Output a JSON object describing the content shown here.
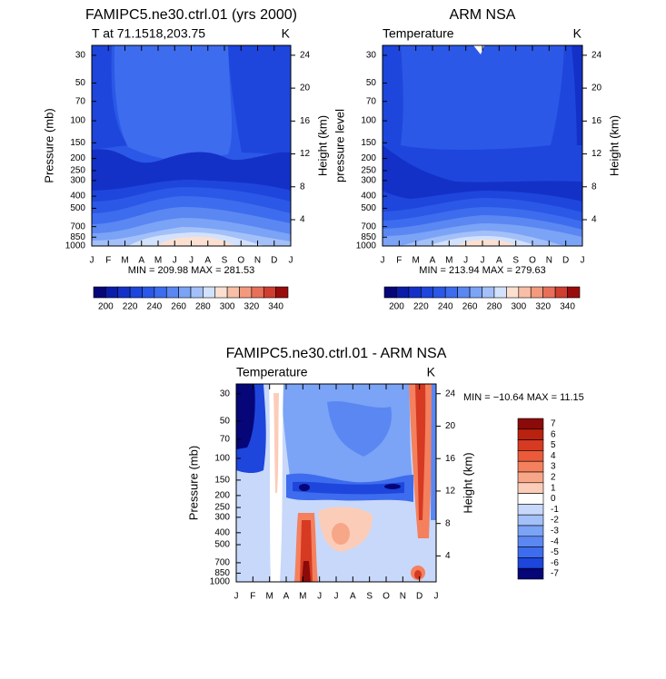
{
  "chart_data": [
    {
      "type": "contour",
      "title": "FAMIPC5.ne30.ctrl.01 (yrs 2000)",
      "left_title": "T at 71.1518,203.75",
      "units": "K",
      "categories": [
        "J",
        "F",
        "M",
        "A",
        "M",
        "J",
        "J",
        "A",
        "S",
        "O",
        "N",
        "D",
        "J"
      ],
      "ylabel": "Pressure (mb)",
      "log_y": true,
      "ylim": [
        1000,
        25
      ],
      "yticks": [
        30,
        50,
        70,
        100,
        150,
        200,
        250,
        300,
        400,
        500,
        700,
        850,
        1000
      ],
      "y2label": "Height (km)",
      "y2lim": [
        0.8,
        25.2
      ],
      "y2ticks": [
        4,
        8,
        12,
        16,
        20,
        24
      ],
      "annotation": "MIN = 209.98 MAX = 281.53",
      "annotation_position": "below",
      "colorbar": {
        "orientation": "horizontal",
        "lim": [
          190,
          350
        ],
        "ticks": [
          200,
          220,
          240,
          260,
          280,
          300,
          320,
          340
        ],
        "colors": [
          "#060679",
          "#0b1ca8",
          "#1431c7",
          "#1e46dc",
          "#2b58e6",
          "#3d6cee",
          "#5a87f2",
          "#7ba3f6",
          "#a4c0f9",
          "#d3e2fc",
          "#fbe0d2",
          "#f8bea6",
          "#f39a7e",
          "#e8705a",
          "#d03e30",
          "#9a0c0c"
        ]
      }
    },
    {
      "type": "contour",
      "title": "ARM NSA",
      "left_title": "Temperature",
      "units": "K",
      "categories": [
        "J",
        "F",
        "M",
        "A",
        "M",
        "J",
        "J",
        "A",
        "S",
        "O",
        "N",
        "D",
        "J"
      ],
      "ylabel": "pressure level",
      "log_y": true,
      "ylim": [
        1000,
        25
      ],
      "yticks": [
        30,
        50,
        70,
        100,
        150,
        200,
        250,
        300,
        400,
        500,
        700,
        850,
        1000
      ],
      "y2label": "Height (km)",
      "y2lim": [
        0.8,
        25.2
      ],
      "y2ticks": [
        4,
        8,
        12,
        16,
        20,
        24
      ],
      "annotation": "MIN = 213.94 MAX = 279.63",
      "annotation_position": "below",
      "colorbar": {
        "orientation": "horizontal",
        "lim": [
          190,
          350
        ],
        "ticks": [
          200,
          220,
          240,
          260,
          280,
          300,
          320,
          340
        ],
        "colors": [
          "#060679",
          "#0b1ca8",
          "#1431c7",
          "#1e46dc",
          "#2b58e6",
          "#3d6cee",
          "#5a87f2",
          "#7ba3f6",
          "#a4c0f9",
          "#d3e2fc",
          "#fbe0d2",
          "#f8bea6",
          "#f39a7e",
          "#e8705a",
          "#d03e30",
          "#9a0c0c"
        ]
      }
    },
    {
      "type": "contour",
      "title": "FAMIPC5.ne30.ctrl.01 - ARM NSA",
      "left_title": "Temperature",
      "units": "K",
      "categories": [
        "J",
        "F",
        "M",
        "A",
        "M",
        "J",
        "J",
        "A",
        "S",
        "O",
        "N",
        "D",
        "J"
      ],
      "ylabel": "Pressure (mb)",
      "log_y": true,
      "ylim": [
        1000,
        25
      ],
      "yticks": [
        30,
        50,
        70,
        100,
        150,
        200,
        250,
        300,
        400,
        500,
        700,
        850,
        1000
      ],
      "y2label": "Height (km)",
      "y2lim": [
        0.8,
        25.2
      ],
      "y2ticks": [
        4,
        8,
        12,
        16,
        20,
        24
      ],
      "annotation": "MIN = −10.64 MAX =  11.15",
      "annotation_position": "right",
      "colorbar": {
        "orientation": "vertical",
        "lim": [
          7.5,
          -7.5
        ],
        "ticks": [
          7,
          6,
          5,
          4,
          3,
          2,
          1,
          0,
          -1,
          -2,
          -3,
          -4,
          -5,
          -6,
          -7
        ],
        "colors": [
          "#8b0a0a",
          "#b8220f",
          "#d63a22",
          "#eb5a3a",
          "#f4805e",
          "#f8a688",
          "#fbcdb8",
          "#ffffff",
          "#c8d8fa",
          "#a4c0f9",
          "#7ba3f6",
          "#5a87f2",
          "#3d6cee",
          "#1e46dc",
          "#060679"
        ]
      }
    }
  ]
}
